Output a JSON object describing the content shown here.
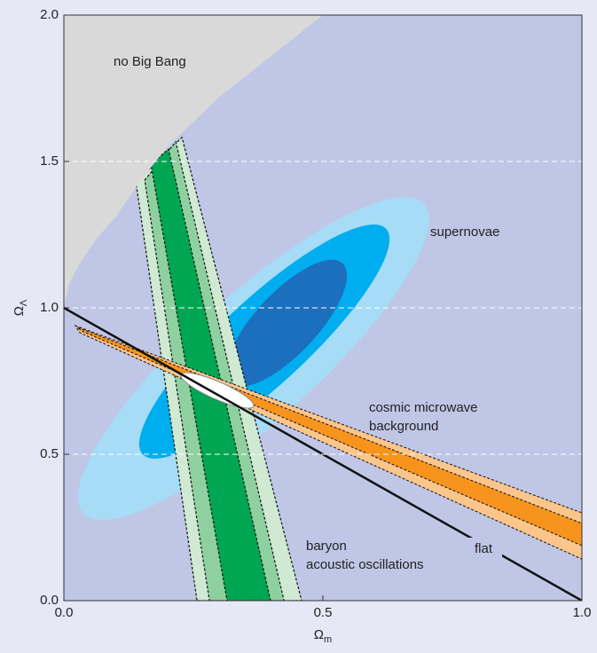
{
  "chart_data": {
    "type": "contour",
    "xlabel": {
      "text": "Ω",
      "sub": "m"
    },
    "ylabel": {
      "text": "Ω",
      "sub": "Λ"
    },
    "xlim": [
      0,
      1
    ],
    "ylim": [
      0,
      2
    ],
    "xticks": [
      {
        "value": 0,
        "label": "0.0"
      },
      {
        "value": 0.5,
        "label": "0.5"
      },
      {
        "value": 1,
        "label": "1.0"
      }
    ],
    "yticks": [
      {
        "value": 0,
        "label": "0.0"
      },
      {
        "value": 0.5,
        "label": "0.5"
      },
      {
        "value": 1,
        "label": "1.0"
      },
      {
        "value": 1.5,
        "label": "1.5"
      },
      {
        "value": 2,
        "label": "2.0"
      }
    ],
    "grid": true,
    "background": "#c0c6e6",
    "regions": {
      "no_big_bang": {
        "name": "no Big Bang",
        "color": "#d9d9d9",
        "x": [
          0,
          0.01,
          0.03,
          0.06,
          0.1,
          0.15,
          0.2,
          0.3,
          0.4,
          0.5
        ],
        "y": [
          1.0,
          1.08,
          1.15,
          1.23,
          1.31,
          1.44,
          1.55,
          1.72,
          1.86,
          2.0
        ]
      },
      "baryon": {
        "name": [
          "baryon",
          "acoustic oscillations"
        ],
        "bands": [
          {
            "color": "#cfe9d3",
            "x": [
              0.139,
              0.228,
              0.459,
              0.257
            ],
            "y": [
              1.43,
              1.582,
              0,
              0
            ]
          },
          {
            "color": "#8fd0a0",
            "x": [
              0.156,
              0.216,
              0.425,
              0.281
            ],
            "y": [
              1.436,
              1.567,
              0,
              0
            ]
          },
          {
            "color": "#00a651",
            "x": [
              0.168,
              0.202,
              0.399,
              0.315
            ],
            "y": [
              1.491,
              1.542,
              0,
              0
            ]
          }
        ]
      },
      "supernovae": {
        "name": "supernovae",
        "ellipses": [
          {
            "color": "#a6dcf6",
            "center": [
              0.366,
              0.827
            ],
            "end": [
              0.695,
              1.355
            ],
            "side": [
              0.286,
              0.988
            ]
          },
          {
            "color": "#00aeef",
            "center": [
              0.387,
              0.885
            ],
            "end": [
              0.622,
              1.27
            ],
            "side": [
              0.33,
              0.991
            ]
          },
          {
            "color": "#1c6fbd",
            "center": [
              0.43,
              0.948
            ],
            "end": [
              0.538,
              1.152
            ],
            "side": [
              0.387,
              1.021
            ]
          }
        ]
      },
      "cmb": {
        "name": [
          "cosmic microwave",
          "background"
        ],
        "bands": [
          {
            "color": "#fbc58c",
            "x": [
              0.022,
              1.0,
              1.0,
              0.031
            ],
            "y": [
              0.939,
              0.3,
              0.142,
              0.915
            ]
          },
          {
            "color": "#f7941d",
            "x": [
              0.027,
              1.0,
              1.0,
              0.034
            ],
            "y": [
              0.933,
              0.264,
              0.188,
              0.921
            ]
          }
        ]
      },
      "combined": {
        "color": "#ffffff",
        "center": [
          0.296,
          0.718
        ],
        "end": [
          0.366,
          0.664
        ],
        "side": [
          0.289,
          0.691
        ]
      },
      "flat": {
        "name": "flat",
        "color": "#111111",
        "x": [
          0,
          1
        ],
        "y": [
          1,
          0
        ]
      }
    }
  }
}
